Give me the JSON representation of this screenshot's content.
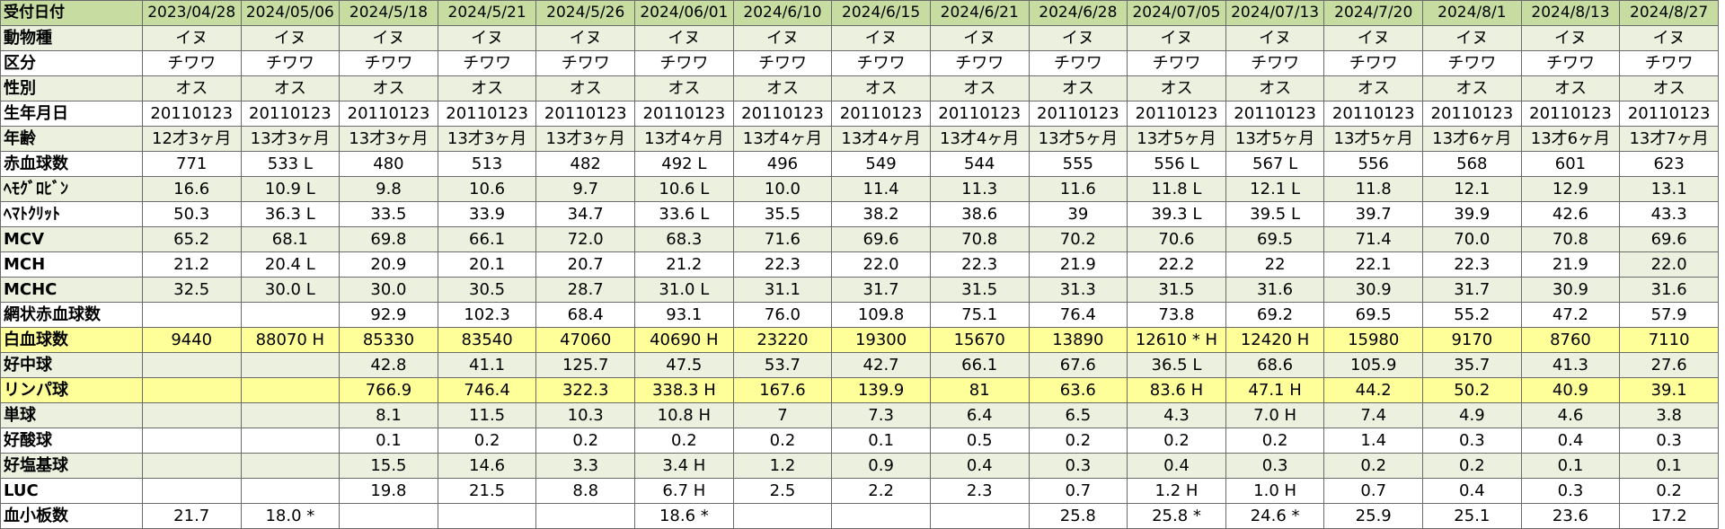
{
  "table": {
    "dates": [
      "2023/04/28",
      "2024/05/06",
      "2024/5/18",
      "2024/5/21",
      "2024/5/26",
      "2024/06/01",
      "2024/6/10",
      "2024/6/15",
      "2024/6/21",
      "2024/6/28",
      "2024/07/05",
      "2024/07/13",
      "2024/7/20",
      "2024/8/1",
      "2024/8/13",
      "2024/8/27"
    ],
    "header_label": "受付日付",
    "rows": [
      {
        "label": "動物種",
        "band": "green",
        "cells": [
          "イヌ",
          "イヌ",
          "イヌ",
          "イヌ",
          "イヌ",
          "イヌ",
          "イヌ",
          "イヌ",
          "イヌ",
          "イヌ",
          "イヌ",
          "イヌ",
          "イヌ",
          "イヌ",
          "イヌ",
          "イヌ"
        ]
      },
      {
        "label": "区分",
        "band": "white",
        "cells": [
          "チワワ",
          "チワワ",
          "チワワ",
          "チワワ",
          "チワワ",
          "チワワ",
          "チワワ",
          "チワワ",
          "チワワ",
          "チワワ",
          "チワワ",
          "チワワ",
          "チワワ",
          "チワワ",
          "チワワ",
          "チワワ"
        ]
      },
      {
        "label": "性別",
        "band": "green",
        "cells": [
          "オス",
          "オス",
          "オス",
          "オス",
          "オス",
          "オス",
          "オス",
          "オス",
          "オス",
          "オス",
          "オス",
          "オス",
          "オス",
          "オス",
          "オス",
          "オス"
        ]
      },
      {
        "label": "生年月日",
        "band": "white",
        "cells": [
          "20110123",
          "20110123",
          "20110123",
          "20110123",
          "20110123",
          "20110123",
          "20110123",
          "20110123",
          "20110123",
          "20110123",
          "20110123",
          "20110123",
          "20110123",
          "20110123",
          "20110123",
          "20110123"
        ]
      },
      {
        "label": "年齢",
        "band": "green",
        "cells": [
          "12才3ヶ月",
          "13才3ヶ月",
          "13才3ヶ月",
          "13才3ヶ月",
          "13才3ヶ月",
          "13才4ヶ月",
          "13才4ヶ月",
          "13才4ヶ月",
          "13才4ヶ月",
          "13才5ヶ月",
          "13才5ヶ月",
          "13才5ヶ月",
          "13才5ヶ月",
          "13才6ヶ月",
          "13才6ヶ月",
          "13才7ヶ月"
        ]
      },
      {
        "label": "赤血球数",
        "band": "white",
        "cells": [
          "771",
          "533 L",
          "480",
          "513",
          "482",
          "492 L",
          "496",
          "549",
          "544",
          "555",
          "556 L",
          "567 L",
          "556",
          "568",
          "601",
          "623"
        ]
      },
      {
        "label": "ﾍﾓｸﾞﾛﾋﾞﾝ",
        "band": "green",
        "cells": [
          "16.6",
          "10.9 L",
          "9.8",
          "10.6",
          "9.7",
          "10.6 L",
          "10.0",
          "11.4",
          "11.3",
          "11.6",
          "11.8 L",
          "12.1 L",
          "11.8",
          "12.1",
          "12.9",
          "13.1"
        ]
      },
      {
        "label": "ﾍﾏﾄｸﾘｯﾄ",
        "band": "white",
        "cells": [
          "50.3",
          "36.3 L",
          "33.5",
          "33.9",
          "34.7",
          "33.6 L",
          "35.5",
          "38.2",
          "38.6",
          "39",
          "39.3 L",
          "39.5 L",
          "39.7",
          "39.9",
          "42.6",
          "43.3"
        ]
      },
      {
        "label": "MCV",
        "band": "green",
        "cells": [
          "65.2",
          "68.1",
          "69.8",
          "66.1",
          "72.0",
          "68.3",
          "71.6",
          "69.6",
          "70.8",
          "70.2",
          "70.6",
          "69.5",
          "71.4",
          "70.0",
          "70.8",
          "69.6"
        ]
      },
      {
        "label": "MCH",
        "band": "white",
        "cells": [
          "21.2",
          "20.4 L",
          "20.9",
          "20.1",
          "20.7",
          "21.2",
          "22.3",
          "22.0",
          "22.3",
          "21.9",
          "22.2",
          "22",
          "22.1",
          "22.3",
          "21.9",
          "22.0"
        ]
      },
      {
        "label": "MCHC",
        "band": "green",
        "cells": [
          "32.5",
          "30.0 L",
          "30.0",
          "30.5",
          "28.7",
          "31.0 L",
          "31.1",
          "31.7",
          "31.5",
          "31.3",
          "31.5",
          "31.6",
          "30.9",
          "31.7",
          "30.9",
          "31.6"
        ]
      },
      {
        "label": "網状赤血球数",
        "band": "white",
        "cells": [
          "",
          "",
          "92.9",
          "102.3",
          "68.4",
          "93.1",
          "76.0",
          "109.8",
          "75.1",
          "76.4",
          "73.8",
          "69.2",
          "69.5",
          "55.2",
          "47.2",
          "57.9"
        ]
      },
      {
        "label": "白血球数",
        "band": "yellow",
        "cells": [
          "9440",
          "88070 H",
          "85330",
          "83540",
          "47060",
          "40690 H",
          "23220",
          "19300",
          "15670",
          "13890",
          "12610 * H",
          "12420 H",
          "15980",
          "9170",
          "8760",
          "7110"
        ]
      },
      {
        "label": "好中球",
        "band": "green",
        "cells": [
          "",
          "",
          "42.8",
          "41.1",
          "125.7",
          "47.5",
          "53.7",
          "42.7",
          "66.1",
          "67.6",
          "36.5 L",
          "68.6",
          "105.9",
          "35.7",
          "41.3",
          "27.6"
        ]
      },
      {
        "label": "リンパ球",
        "band": "yellow",
        "cells": [
          "",
          "",
          "766.9",
          "746.4",
          "322.3",
          "338.3 H",
          "167.6",
          "139.9",
          "81",
          "63.6",
          "83.6 H",
          "47.1 H",
          "44.2",
          "50.2",
          "40.9",
          "39.1"
        ]
      },
      {
        "label": "単球",
        "band": "green",
        "cells": [
          "",
          "",
          "8.1",
          "11.5",
          "10.3",
          "10.8 H",
          "7",
          "7.3",
          "6.4",
          "6.5",
          "4.3",
          "7.0 H",
          "7.4",
          "4.9",
          "4.6",
          "3.8"
        ]
      },
      {
        "label": "好酸球",
        "band": "white",
        "cells": [
          "",
          "",
          "0.1",
          "0.2",
          "0.2",
          "0.2",
          "0.2",
          "0.1",
          "0.5",
          "0.2",
          "0.2",
          "0.2",
          "1.4",
          "0.3",
          "0.4",
          "0.3"
        ]
      },
      {
        "label": "好塩基球",
        "band": "green",
        "cells": [
          "",
          "",
          "15.5",
          "14.6",
          "3.3",
          "3.4 H",
          "1.2",
          "0.9",
          "0.4",
          "0.3",
          "0.4",
          "0.3",
          "0.2",
          "0.2",
          "0.1",
          "0.1"
        ]
      },
      {
        "label": "LUC",
        "band": "white",
        "cells": [
          "",
          "",
          "19.8",
          "21.5",
          "8.8",
          "6.7 H",
          "2.5",
          "2.2",
          "2.3",
          "0.7",
          "1.2 H",
          "1.0 H",
          "0.7",
          "0.4",
          "0.3",
          "0.2"
        ]
      },
      {
        "label": "血小板数",
        "band": "white",
        "cells": [
          "21.7",
          "18.0 *",
          "",
          "",
          "",
          "18.6 *",
          "",
          "",
          "",
          "25.8",
          "25.8 *",
          "24.6 *",
          "25.9",
          "25.1",
          "23.6",
          "17.2"
        ]
      }
    ]
  },
  "colors": {
    "header_bg": "#c6dca0",
    "band_green": "#ebf1de",
    "band_yellow": "#ffff9a",
    "grid_line": "#6b6b6b"
  }
}
